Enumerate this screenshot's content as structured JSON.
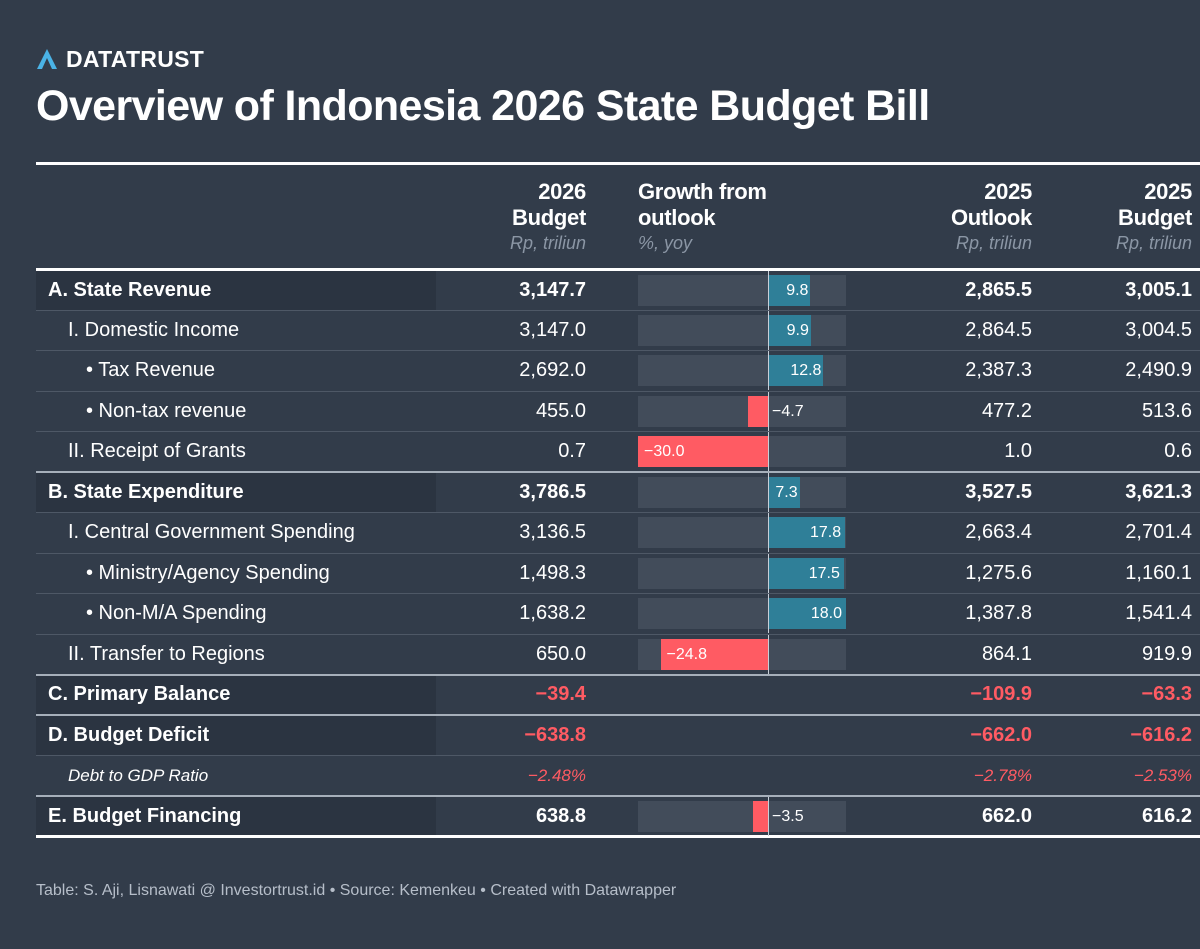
{
  "brand": {
    "name": "DATATRUST",
    "icon": "datatrust-logo-icon",
    "color": "#4ab3e6"
  },
  "title": "Overview of Indonesia 2026 State Budget Bill",
  "columns": [
    {
      "key": "label",
      "line1": "",
      "line2": "",
      "sub": ""
    },
    {
      "key": "budget2026",
      "line1": "2026",
      "line2": "Budget",
      "sub": "Rp, triliun"
    },
    {
      "key": "growth",
      "line1": "Growth from",
      "line2": "outlook",
      "sub": "%, yoy"
    },
    {
      "key": "outlook2025",
      "line1": "2025",
      "line2": "Outlook",
      "sub": "Rp, triliun"
    },
    {
      "key": "budget2025",
      "line1": "2025",
      "line2": "Budget",
      "sub": "Rp, triliun"
    }
  ],
  "colors": {
    "background": "#323c4a",
    "positive_bar": "#2f7f98",
    "negative": "#ff5b63",
    "bar_track": "#424c5a"
  },
  "chart_data": {
    "type": "table",
    "title": "Overview of Indonesia 2026 State Budget Bill",
    "growth_range": [
      -30,
      17.8
    ],
    "rows": [
      {
        "label": "A. State Revenue",
        "style": "bold",
        "indent": 0,
        "budget2026": "3,147.7",
        "growth": 9.8,
        "growth_label": "9.8",
        "outlook2025": "2,865.5",
        "budget2025": "3,005.1"
      },
      {
        "label": "I. Domestic Income",
        "style": "normal",
        "indent": 1,
        "budget2026": "3,147.0",
        "growth": 9.9,
        "growth_label": "9.9",
        "outlook2025": "2,864.5",
        "budget2025": "3,004.5"
      },
      {
        "label": "• Tax Revenue",
        "style": "normal",
        "indent": 2,
        "budget2026": "2,692.0",
        "growth": 12.8,
        "growth_label": "12.8",
        "outlook2025": "2,387.3",
        "budget2025": "2,490.9"
      },
      {
        "label": "• Non-tax revenue",
        "style": "normal",
        "indent": 2,
        "budget2026": "455.0",
        "growth": -4.7,
        "growth_label": "−4.7",
        "outlook2025": "477.2",
        "budget2025": "513.6"
      },
      {
        "label": "II. Receipt of Grants",
        "style": "normal",
        "indent": 1,
        "budget2026": "0.7",
        "growth": -30.0,
        "growth_label": "−30.0",
        "outlook2025": "1.0",
        "budget2025": "0.6"
      },
      {
        "label": "B. State Expenditure",
        "style": "bold",
        "indent": 0,
        "major": true,
        "budget2026": "3,786.5",
        "growth": 7.3,
        "growth_label": "7.3",
        "outlook2025": "3,527.5",
        "budget2025": "3,621.3"
      },
      {
        "label": "I. Central Government Spending",
        "style": "normal",
        "indent": 1,
        "budget2026": "3,136.5",
        "growth": 17.8,
        "growth_label": "17.8",
        "outlook2025": "2,663.4",
        "budget2025": "2,701.4"
      },
      {
        "label": "• Ministry/Agency Spending",
        "style": "normal",
        "indent": 2,
        "budget2026": "1,498.3",
        "growth": 17.5,
        "growth_label": "17.5",
        "outlook2025": "1,275.6",
        "budget2025": "1,160.1"
      },
      {
        "label": "• Non-M/A Spending",
        "style": "normal",
        "indent": 2,
        "budget2026": "1,638.2",
        "growth": 18.0,
        "growth_label": "18.0",
        "outlook2025": "1,387.8",
        "budget2025": "1,541.4"
      },
      {
        "label": "II. Transfer to Regions",
        "style": "normal",
        "indent": 1,
        "budget2026": "650.0",
        "growth": -24.8,
        "growth_label": "−24.8",
        "outlook2025": "864.1",
        "budget2025": "919.9"
      },
      {
        "label": "C. Primary Balance",
        "style": "bold",
        "indent": 0,
        "major": true,
        "negative": true,
        "budget2026": "−39.4",
        "growth": null,
        "growth_label": "",
        "outlook2025": "−109.9",
        "budget2025": "−63.3"
      },
      {
        "label": "D. Budget Deficit",
        "style": "bold",
        "indent": 0,
        "major": true,
        "negative": true,
        "budget2026": "−638.8",
        "growth": null,
        "growth_label": "",
        "outlook2025": "−662.0",
        "budget2025": "−616.2"
      },
      {
        "label": "Debt to GDP Ratio",
        "style": "italic",
        "indent": 1,
        "negative": true,
        "budget2026": "−2.48%",
        "growth": null,
        "growth_label": "",
        "outlook2025": "−2.78%",
        "budget2025": "−2.53%"
      },
      {
        "label": "E. Budget Financing",
        "style": "bold",
        "indent": 0,
        "major": true,
        "budget2026": "638.8",
        "growth": -3.5,
        "growth_label": "−3.5",
        "outlook2025": "662.0",
        "budget2025": "616.2"
      }
    ]
  },
  "footer": "Table: S. Aji, Lisnawati @ Investortrust.id • Source: Kemenkeu • Created with Datawrapper"
}
